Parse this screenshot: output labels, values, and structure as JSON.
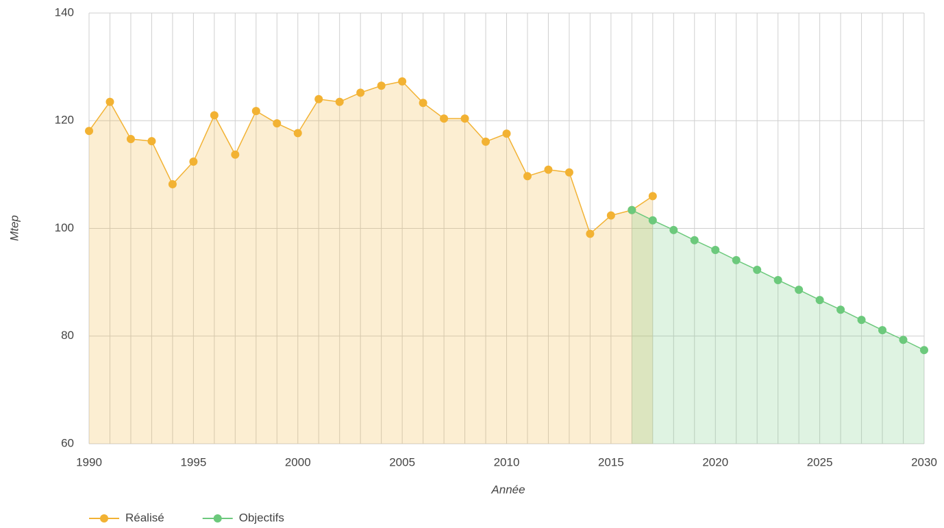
{
  "chart_data": {
    "type": "area",
    "xlabel": "Année",
    "ylabel": "Mtep",
    "series": [
      {
        "name": "Réalisé",
        "color": "#f2b233",
        "x": [
          1990,
          1991,
          1992,
          1993,
          1994,
          1995,
          1996,
          1997,
          1998,
          1999,
          2000,
          2001,
          2002,
          2003,
          2004,
          2005,
          2006,
          2007,
          2008,
          2009,
          2010,
          2011,
          2012,
          2013,
          2014,
          2015,
          2016,
          2017
        ],
        "values": [
          118.1,
          123.5,
          116.6,
          116.2,
          108.2,
          112.4,
          121.0,
          113.7,
          121.8,
          119.5,
          117.7,
          124.0,
          123.5,
          125.2,
          126.5,
          127.3,
          123.3,
          120.4,
          120.4,
          116.1,
          117.6,
          109.7,
          110.9,
          110.4,
          99.0,
          102.4,
          103.4,
          106.0
        ]
      },
      {
        "name": "Objectifs",
        "color": "#6cc97c",
        "x": [
          2016,
          2017,
          2018,
          2019,
          2020,
          2021,
          2022,
          2023,
          2024,
          2025,
          2026,
          2027,
          2028,
          2029,
          2030
        ],
        "values": [
          103.4,
          101.5,
          99.7,
          97.8,
          96.0,
          94.1,
          92.3,
          90.4,
          88.6,
          86.7,
          84.9,
          83.0,
          81.1,
          79.3,
          77.4
        ]
      }
    ],
    "xlim": [
      1990,
      2030
    ],
    "xticks": [
      1990,
      1995,
      2000,
      2005,
      2010,
      2015,
      2020,
      2025,
      2030
    ],
    "ylim": [
      60,
      140
    ],
    "yticks": [
      60,
      80,
      100,
      120,
      140
    ],
    "grid": true,
    "legend": "bottom-left"
  }
}
